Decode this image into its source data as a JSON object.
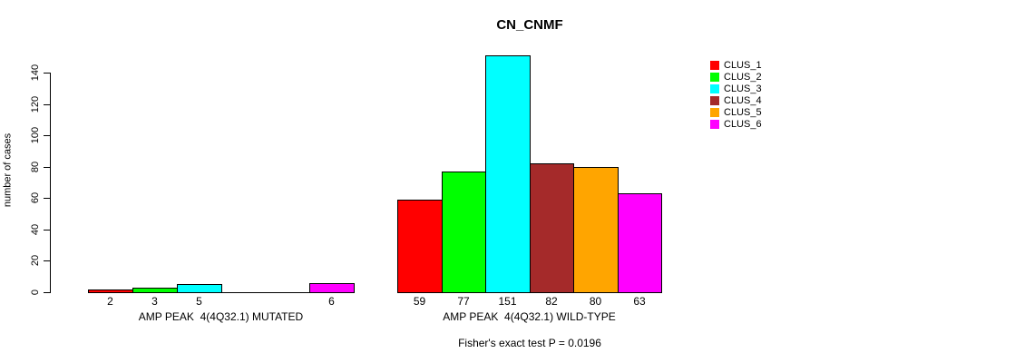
{
  "chart_data": {
    "type": "bar",
    "title": "CN_CNMF",
    "ylabel": "number of cases",
    "yticks": [
      0,
      20,
      40,
      60,
      80,
      100,
      120,
      140
    ],
    "ylim": [
      0,
      140
    ],
    "grid": false,
    "legend_position": "topright",
    "categories": [
      "CLUS_1",
      "CLUS_2",
      "CLUS_3",
      "CLUS_4",
      "CLUS_5",
      "CLUS_6"
    ],
    "series_colors": [
      "#FF0000",
      "#00FF00",
      "#00FFFF",
      "#A52A2A",
      "#FFA500",
      "#FF00FF"
    ],
    "legend": [
      {
        "label": "CLUS_1",
        "color": "#FF0000"
      },
      {
        "label": "CLUS_2",
        "color": "#00FF00"
      },
      {
        "label": "CLUS_3",
        "color": "#00FFFF"
      },
      {
        "label": "CLUS_4",
        "color": "#A52A2A"
      },
      {
        "label": "CLUS_5",
        "color": "#FFA500"
      },
      {
        "label": "CLUS_6",
        "color": "#FF00FF"
      }
    ],
    "groups": [
      {
        "label": "AMP PEAK  4(4Q32.1) MUTATED",
        "values": [
          2,
          3,
          5,
          0,
          0,
          6
        ],
        "value_labels": [
          "2",
          "3",
          "5",
          "",
          "",
          "6"
        ]
      },
      {
        "label": "AMP PEAK  4(4Q32.1) WILD-TYPE",
        "values": [
          59,
          77,
          151,
          82,
          80,
          63
        ],
        "value_labels": [
          "59",
          "77",
          "151",
          "82",
          "80",
          "63"
        ]
      }
    ],
    "annotation": "Fisher's exact test P = 0.0196"
  }
}
